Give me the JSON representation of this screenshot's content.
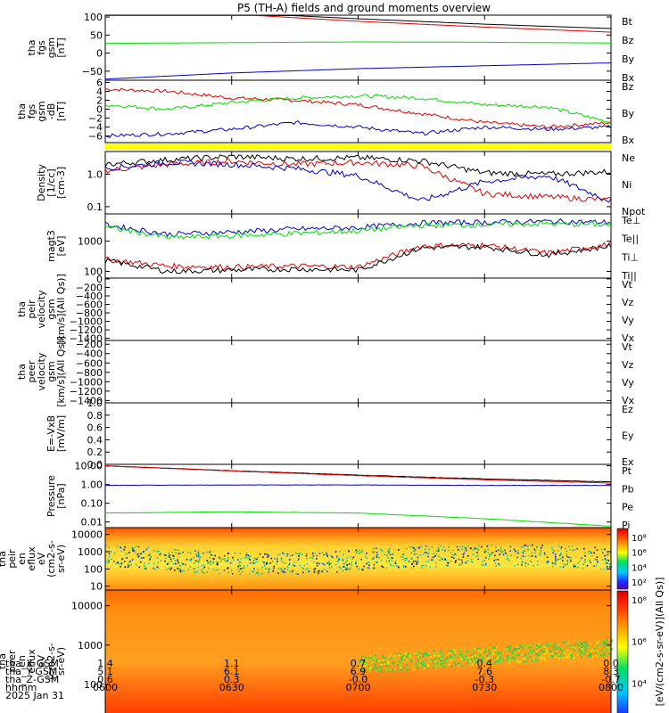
{
  "title": "P5 (TH-A) fields and ground moments overview",
  "time_axis": {
    "rows": [
      {
        "label": "tha_X-GSM",
        "values": [
          "1.4",
          "1.1",
          "0.7",
          "0.4",
          "0.0"
        ]
      },
      {
        "label": "tha_Y-GSM",
        "values": [
          "5.1",
          "6.1",
          "6.9",
          "7.6",
          "8.3"
        ]
      },
      {
        "label": "tha_Z-GSM",
        "values": [
          "0.6",
          "0.3",
          "-0.0",
          "-0.3",
          "-0.7"
        ]
      },
      {
        "label": "hhmm",
        "values": [
          "0600",
          "0630",
          "0700",
          "0730",
          "0800"
        ]
      }
    ],
    "date": "2025 Jan 31"
  },
  "colors": {
    "black": "#000000",
    "red": "#e00000",
    "green": "#00dd00",
    "blue": "#0000cc",
    "yellow": "#ffff00"
  },
  "chart_data": [
    {
      "type": "line",
      "panel": "fgs",
      "ylabel": [
        "tha",
        "fgs",
        "gsm",
        "[nT]"
      ],
      "yticks": [
        "100",
        "50",
        "0",
        "−50"
      ],
      "ylim": [
        -75,
        105
      ],
      "x": [
        "0600",
        "0630",
        "0700",
        "0730",
        "0800"
      ],
      "series": [
        {
          "name": "Bt",
          "color": "#000000",
          "values": [
            130,
            112,
            95,
            80,
            68
          ]
        },
        {
          "name": "Bz",
          "color": "#e00000",
          "values": [
            128,
            108,
            88,
            72,
            58
          ]
        },
        {
          "name": "By",
          "color": "#00dd00",
          "values": [
            27,
            29,
            31,
            30,
            28
          ]
        },
        {
          "name": "Bx",
          "color": "#0000cc",
          "values": [
            -72,
            -55,
            -43,
            -35,
            -27
          ]
        }
      ]
    },
    {
      "type": "line",
      "panel": "fgs-dbg",
      "ylabel": [
        "tha",
        "fgs",
        "gsm",
        "-dB",
        "[nT]"
      ],
      "yticks": [
        "6",
        "4",
        "2",
        "0",
        "−2",
        "−4",
        "−6"
      ],
      "ylim": [
        -7.5,
        6.5
      ],
      "x": [
        "0600",
        "0615",
        "0630",
        "0645",
        "0700",
        "0715",
        "0730",
        "0745",
        "0800"
      ],
      "series": [
        {
          "name": "Bz",
          "color": "#e00000",
          "values": [
            4.5,
            4.0,
            2.5,
            2.0,
            1.0,
            -1.0,
            -3.0,
            -4.0,
            -3.0
          ]
        },
        {
          "name": "By",
          "color": "#00dd00",
          "values": [
            1.0,
            0.0,
            1.5,
            2.5,
            3.0,
            2.5,
            1.0,
            0.5,
            -3.0
          ]
        },
        {
          "name": "Bx",
          "color": "#0000cc",
          "values": [
            -6.0,
            -5.5,
            -4.5,
            -3.0,
            -4.0,
            -5.5,
            -4.0,
            -4.5,
            -4.0
          ]
        }
      ]
    },
    {
      "type": "line",
      "panel": "density",
      "yscale": "log",
      "ylabel": [
        "Density",
        "[1/cc]",
        "[cm-3]"
      ],
      "yticks": [
        "1.0",
        "0.1"
      ],
      "ylim": [
        0.06,
        5.0
      ],
      "x": [
        "0600",
        "0615",
        "0630",
        "0645",
        "0700",
        "0715",
        "0730",
        "0745",
        "0800"
      ],
      "series": [
        {
          "name": "Ne",
          "color": "#e00000",
          "values": [
            1.3,
            2.0,
            2.5,
            2.0,
            2.3,
            1.8,
            0.25,
            0.2,
            0.16
          ]
        },
        {
          "name": "Ni",
          "color": "#000000",
          "values": [
            2.0,
            2.8,
            3.5,
            3.0,
            3.2,
            2.6,
            1.1,
            1.0,
            1.2
          ]
        },
        {
          "name": "Npot",
          "color": "#0000cc",
          "values": [
            1.5,
            2.3,
            2.0,
            1.5,
            0.9,
            0.15,
            0.6,
            0.9,
            0.15
          ]
        }
      ]
    },
    {
      "type": "line",
      "panel": "temperature",
      "yscale": "log",
      "ylabel": [
        "magt3",
        "[eV]"
      ],
      "yticks": [
        "1000",
        "100"
      ],
      "ylim": [
        60,
        8000
      ],
      "x": [
        "0600",
        "0615",
        "0630",
        "0645",
        "0700",
        "0715",
        "0730",
        "0745",
        "0800"
      ],
      "series": [
        {
          "name": "Te⊥",
          "color": "#e00000",
          "values": [
            250,
            150,
            140,
            150,
            140,
            700,
            750,
            400,
            800
          ]
        },
        {
          "name": "Te||",
          "color": "#000000",
          "values": [
            230,
            100,
            110,
            120,
            110,
            600,
            650,
            350,
            700
          ]
        },
        {
          "name": "Ti⊥",
          "color": "#0000cc",
          "values": [
            3500,
            1700,
            2000,
            2500,
            2800,
            4000,
            4200,
            4500,
            4200
          ]
        },
        {
          "name": "Ti||",
          "color": "#00dd00",
          "values": [
            3000,
            1300,
            1500,
            1800,
            2200,
            3300,
            3500,
            3800,
            3500
          ]
        }
      ]
    },
    {
      "type": "line",
      "panel": "peir-velocity",
      "ylabel": [
        "tha",
        "peir",
        "velocity",
        "gsm",
        "[km/s](All Qs)]"
      ],
      "yticks": [
        "0",
        "−200",
        "−400",
        "−600",
        "−800",
        "−1000",
        "−1200",
        "−1400"
      ],
      "ylim": [
        -1450,
        20
      ],
      "series": [
        {
          "name": "Vt",
          "color": "#000000",
          "values": []
        },
        {
          "name": "Vz",
          "color": "#e00000",
          "values": []
        },
        {
          "name": "Vy",
          "color": "#00dd00",
          "values": []
        },
        {
          "name": "Vx",
          "color": "#0000cc",
          "values": []
        }
      ]
    },
    {
      "type": "line",
      "panel": "peer-velocity",
      "ylabel": [
        "tha",
        "peer",
        "velocity",
        "gsm",
        "[km/s](All Qs)]"
      ],
      "yticks": [
        "−200",
        "−400",
        "−600",
        "−800",
        "−1000",
        "−1200",
        "−1400"
      ],
      "ylim": [
        -1450,
        -120
      ],
      "series": [
        {
          "name": "Vt",
          "color": "#000000",
          "values": []
        },
        {
          "name": "Vz",
          "color": "#e00000",
          "values": []
        },
        {
          "name": "Vy",
          "color": "#00dd00",
          "values": []
        },
        {
          "name": "Vx",
          "color": "#0000cc",
          "values": []
        }
      ]
    },
    {
      "type": "line",
      "panel": "efield",
      "ylabel": [
        "E=-VxB",
        "[mV/m]"
      ],
      "yticks": [
        "1.0",
        "0.8",
        "0.6",
        "0.4",
        "0.2",
        "0.0"
      ],
      "ylim": [
        0,
        1
      ],
      "series": [
        {
          "name": "Ez",
          "color": "#e00000",
          "values": []
        },
        {
          "name": "Ey",
          "color": "#00dd00",
          "values": []
        },
        {
          "name": "Ex",
          "color": "#0000cc",
          "values": []
        }
      ]
    },
    {
      "type": "line",
      "panel": "pressure",
      "yscale": "log",
      "ylabel": [
        "Pressure",
        "[nPa]"
      ],
      "yticks": [
        "10.00",
        "1.00",
        "0.10",
        "0.01"
      ],
      "ylim": [
        0.005,
        12
      ],
      "x": [
        "0600",
        "0630",
        "0700",
        "0730",
        "0800"
      ],
      "series": [
        {
          "name": "Pt",
          "color": "#000000",
          "values": [
            10.0,
            5.5,
            3.2,
            2.0,
            1.4
          ]
        },
        {
          "name": "Pb",
          "color": "#e00000",
          "values": [
            10.0,
            5.3,
            3.0,
            1.8,
            1.2
          ]
        },
        {
          "name": "Pe",
          "color": "#00dd00",
          "values": [
            0.03,
            0.035,
            0.03,
            0.015,
            0.006
          ]
        },
        {
          "name": "Pi",
          "color": "#0000cc",
          "values": [
            0.9,
            0.95,
            0.95,
            0.9,
            0.9
          ]
        }
      ]
    },
    {
      "type": "heatmap",
      "panel": "peir-spectrogram",
      "yscale": "log",
      "ylabel": [
        "tha",
        "peir",
        "en",
        "eflux",
        "eV",
        "(cm2-s-",
        "sr-eV)"
      ],
      "yticks": [
        "10000",
        "1000",
        "100",
        "10"
      ],
      "ylim": [
        6,
        25000
      ],
      "colorbar": {
        "label": "[eV/(cm2-s-sr-eV)](All Qs)]",
        "ticks": [
          "10⁸",
          "10⁶",
          "10⁴",
          "10²"
        ]
      }
    },
    {
      "type": "heatmap",
      "panel": "peer-spectrogram",
      "yscale": "log",
      "ylabel": [
        "tha",
        "peer",
        "en",
        "eflux",
        "eV",
        "(cm2-s-",
        "sr-eV)"
      ],
      "yticks": [
        "10000",
        "1000",
        "100",
        "10"
      ],
      "ylim": [
        6,
        25000
      ],
      "colorbar": {
        "label": "[eV/(cm2-s-sr-eV)](All Qs)]",
        "ticks": [
          "10⁸",
          "10⁶",
          "10⁴",
          "10²"
        ]
      }
    }
  ]
}
